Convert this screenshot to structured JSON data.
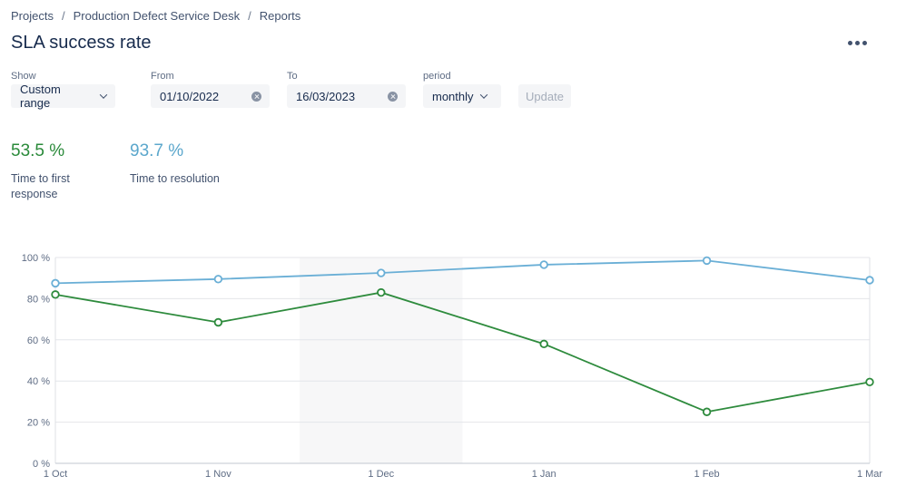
{
  "breadcrumb": {
    "items": [
      "Projects",
      "Production Defect Service Desk",
      "Reports"
    ],
    "separator": "/"
  },
  "page_title": "SLA success rate",
  "more_icon": "more-horizontal-icon",
  "filters": {
    "show": {
      "label": "Show",
      "value": "Custom range"
    },
    "from": {
      "label": "From",
      "value": "01/10/2022"
    },
    "to": {
      "label": "To",
      "value": "16/03/2023"
    },
    "period": {
      "label": "period",
      "value": "monthly"
    },
    "update_label": "Update"
  },
  "metrics": [
    {
      "value": "53.5 %",
      "label": "Time to first response",
      "color": "#2a8a3a"
    },
    {
      "value": "93.7 %",
      "label": "Time to resolution",
      "color": "#5ba7cc"
    }
  ],
  "chart_data": {
    "type": "line",
    "categories": [
      "1 Oct",
      "1 Nov",
      "1 Dec",
      "1 Jan",
      "1 Feb",
      "1 Mar"
    ],
    "y_ticks": [
      "0 %",
      "20 %",
      "40 %",
      "60 %",
      "80 %",
      "100 %"
    ],
    "ylim": [
      0,
      100
    ],
    "grid": true,
    "highlight_band": [
      1.5,
      2.5
    ],
    "series": [
      {
        "values": [
          87.5,
          89.5,
          92.5,
          96.5,
          98.5,
          89
        ],
        "color": "#6aafd6"
      },
      {
        "values": [
          82,
          68.5,
          83,
          58,
          25,
          39.5
        ],
        "color": "#2e8b3d"
      }
    ]
  }
}
